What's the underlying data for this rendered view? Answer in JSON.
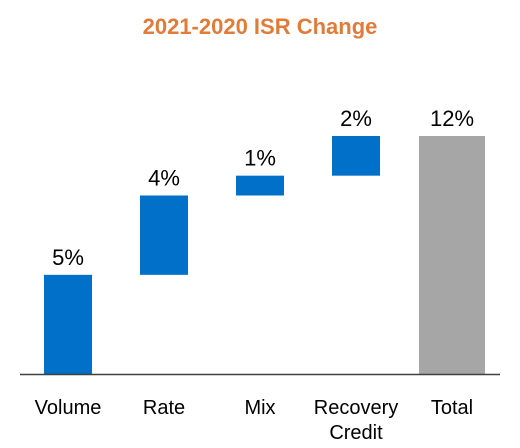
{
  "chart_data": {
    "type": "bar",
    "subtype": "waterfall",
    "title": "2021-2020 ISR Change",
    "categories": [
      [
        "Volume"
      ],
      [
        "Rate"
      ],
      [
        "Mix"
      ],
      [
        "Recovery",
        "Credit"
      ],
      [
        "Total"
      ]
    ],
    "values": [
      5,
      4,
      1,
      2,
      12
    ],
    "labels": [
      "5%",
      "4%",
      "1%",
      "2%",
      "12%"
    ],
    "is_total": [
      false,
      false,
      false,
      false,
      true
    ],
    "unit": "%",
    "ylim": [
      0,
      12
    ],
    "grid": false,
    "legend": "none"
  },
  "colors": {
    "title": "#E07B39",
    "increase": "#0070C9",
    "total": "#A6A6A6",
    "axis": "#404040"
  }
}
